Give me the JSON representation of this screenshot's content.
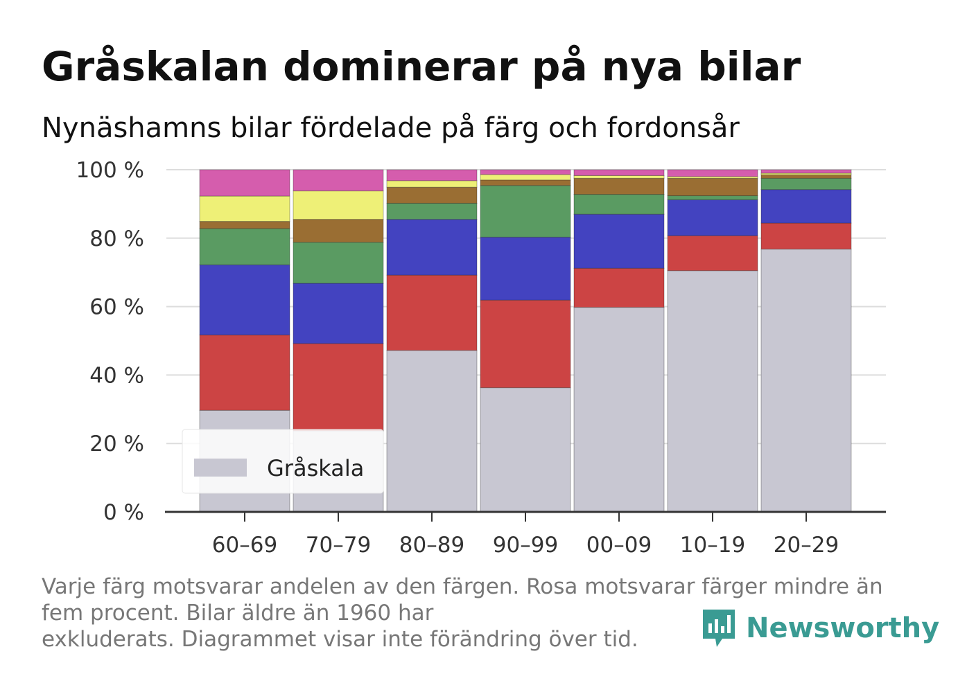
{
  "title": "Gråskalan dominerar på nya bilar",
  "subtitle": "Nynäshamns bilar fördelade på färg och fordonsår",
  "footnote": {
    "line1": "Varje färg motsvarar andelen av den färgen. Rosa motsvarar färger mindre än",
    "line2": "fem procent. Bilar äldre än 1960 har",
    "line3": "exkluderats. Diagrammet visar inte förändring över tid."
  },
  "brand": {
    "name": "Newsworthy",
    "color": "#3a9b93",
    "icon": "bar-chart-speech-bubble-icon"
  },
  "legend": {
    "label": "Gråskala",
    "placement": "bottom-left"
  },
  "chart_data": {
    "type": "bar",
    "stacked": true,
    "categories": [
      "60–69",
      "70–79",
      "80–89",
      "90–99",
      "00–09",
      "10–19",
      "20–29"
    ],
    "ylim": [
      0,
      100
    ],
    "yticks": [
      "0 %",
      "20 %",
      "40 %",
      "60 %",
      "80 %",
      "100 %"
    ],
    "grid": true,
    "series": [
      {
        "name": "Gråskala",
        "color": "#c8c7d2",
        "values": [
          29.7,
          23.7,
          47.2,
          36.3,
          59.8,
          70.5,
          76.8
        ]
      },
      {
        "color": "#cc4444",
        "values": [
          22.0,
          25.5,
          22.0,
          25.6,
          11.4,
          10.2,
          7.6
        ]
      },
      {
        "color": "#4343c0",
        "values": [
          20.5,
          17.6,
          16.3,
          18.4,
          15.8,
          10.5,
          9.8
        ]
      },
      {
        "color": "#5a9b62",
        "values": [
          10.6,
          12.0,
          4.7,
          15.1,
          5.8,
          1.2,
          3.3
        ]
      },
      {
        "color": "#9a6e33",
        "values": [
          2.1,
          6.7,
          4.7,
          1.6,
          4.7,
          5.1,
          1.0
        ]
      },
      {
        "color": "#eef077",
        "values": [
          7.4,
          8.3,
          1.9,
          1.6,
          0.8,
          0.5,
          0.5
        ]
      },
      {
        "color": "#d55dad",
        "values": [
          7.7,
          6.2,
          3.2,
          1.4,
          1.7,
          2.0,
          1.0
        ]
      }
    ]
  }
}
